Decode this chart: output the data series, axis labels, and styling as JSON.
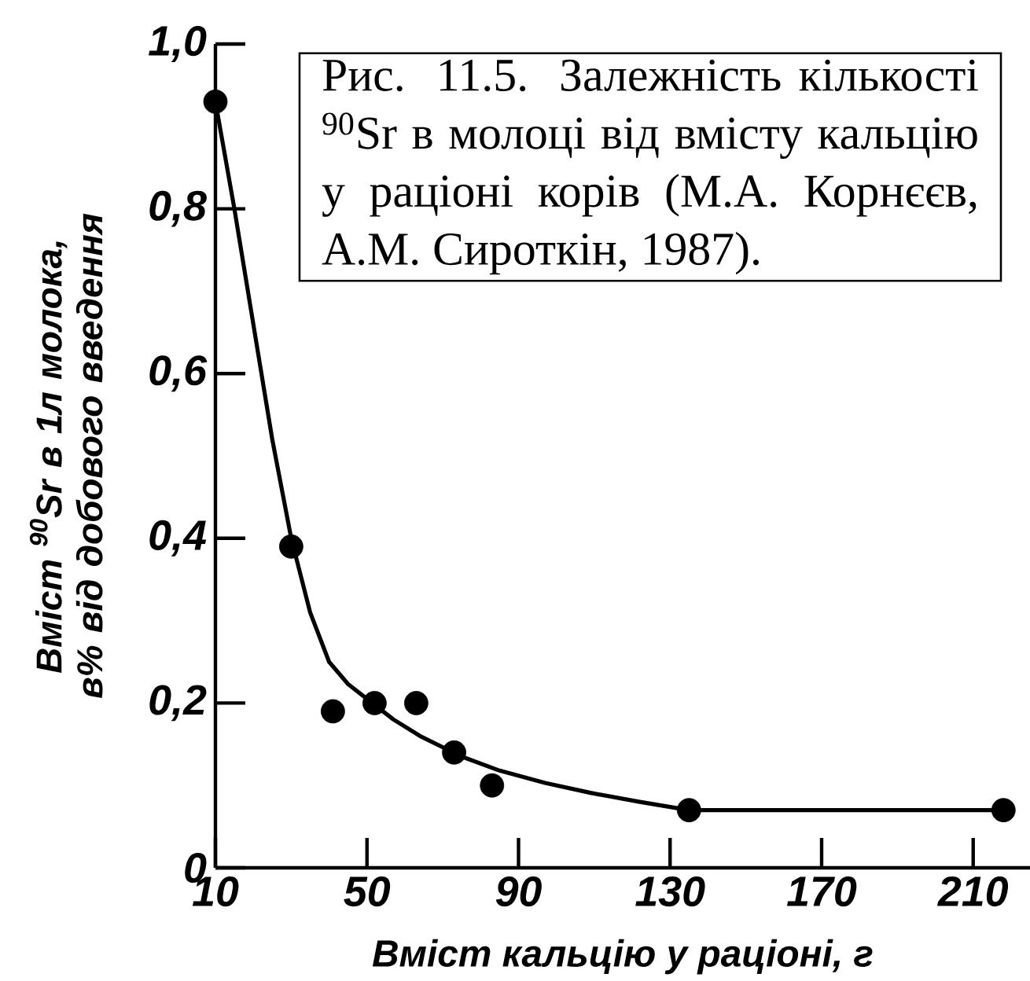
{
  "chart_data": {
    "type": "line",
    "xlabel": "Вміст кальцію у раціоні, г",
    "ylabel": "Вміст $^{90}$Sr в 1л молока, в% від добового введення",
    "xlim": [
      10,
      225
    ],
    "ylim": [
      0,
      1.0
    ],
    "xticks": [
      10,
      50,
      90,
      130,
      170,
      210
    ],
    "yticks": [
      0,
      {
        "value": 0.2,
        "label": "0,2"
      },
      {
        "value": 0.4,
        "label": "0,4"
      },
      {
        "value": 0.6,
        "label": "0,6"
      },
      {
        "value": 0.8,
        "label": "0,8"
      },
      {
        "value": 1.0,
        "label": "1,0"
      }
    ],
    "series": [
      {
        "marker": "none",
        "color": "#000000",
        "x": [
          10,
          15,
          20,
          25,
          30,
          35,
          40,
          45,
          50,
          57,
          64,
          75,
          85,
          97,
          109,
          122,
          135,
          218
        ],
        "values": [
          0.93,
          0.8,
          0.66,
          0.52,
          0.4,
          0.31,
          0.25,
          0.223,
          0.205,
          0.18,
          0.16,
          0.135,
          0.118,
          0.103,
          0.091,
          0.08,
          0.07,
          0.07
        ]
      },
      {
        "type": "scatter",
        "marker": "circle",
        "color": "#000000",
        "x": [
          10,
          30,
          41,
          52,
          63,
          73,
          83,
          135,
          218
        ],
        "values": [
          0.93,
          0.39,
          0.19,
          0.2,
          0.2,
          0.14,
          0.1,
          0.07,
          0.07
        ]
      }
    ],
    "annotations": [
      "Рис. 11.5. Залежність кількості $^{90}$Sr в молоці від вмісту кальцію у раціоні корів (М.А. Корнєєв, А.М. Сироткін, 1987)."
    ]
  }
}
